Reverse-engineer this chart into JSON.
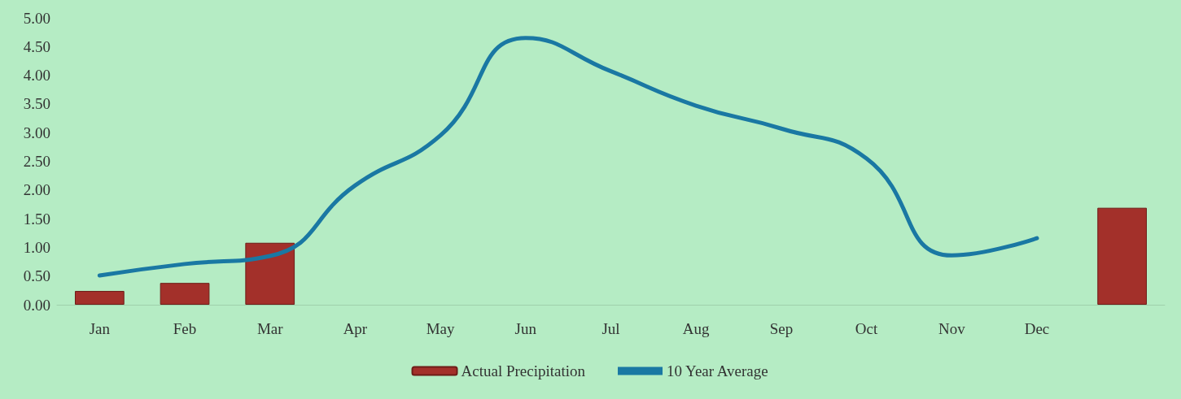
{
  "chart_data": {
    "type": "bar",
    "categories": [
      "Jan",
      "Feb",
      "Mar",
      "Apr",
      "May",
      "Jun",
      "Jul",
      "Aug",
      "Sep",
      "Oct",
      "Nov",
      "Dec",
      null
    ],
    "series": [
      {
        "name": "Actual Precipitation",
        "color": "#a3302a",
        "values": [
          0.24,
          0.38,
          1.08,
          null,
          null,
          null,
          null,
          null,
          null,
          null,
          null,
          null,
          1.69
        ]
      },
      {
        "name": "10 Year Average",
        "type": "line",
        "color": "#1a78a3",
        "values": [
          0.51,
          0.71,
          0.85,
          2.08,
          2.95,
          4.65,
          4.07,
          3.47,
          3.07,
          2.55,
          0.86,
          1.16,
          null
        ]
      }
    ],
    "ylim": [
      0,
      5
    ],
    "yticks": [
      {
        "value": 0,
        "label": "0.00"
      },
      {
        "value": 0.5,
        "label": "0.50"
      },
      {
        "value": 1,
        "label": "1.00"
      },
      {
        "value": 1.5,
        "label": "1.50"
      },
      {
        "value": 2,
        "label": "2.00"
      },
      {
        "value": 2.5,
        "label": "2.50"
      },
      {
        "value": 3,
        "label": "3.00"
      },
      {
        "value": 3.5,
        "label": "3.50"
      },
      {
        "value": 4,
        "label": "4.00"
      },
      {
        "value": 4.5,
        "label": "4.50"
      },
      {
        "value": 5,
        "label": "5.00"
      }
    ],
    "legend": "bottom",
    "marker": "none"
  }
}
